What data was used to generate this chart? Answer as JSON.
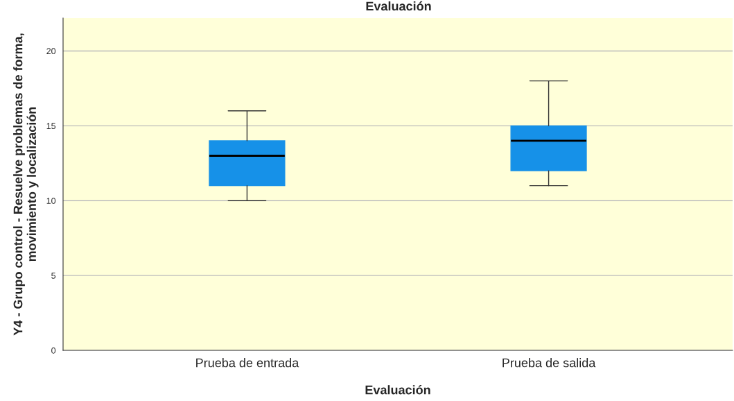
{
  "chart_data": {
    "type": "box",
    "title": "Evaluación",
    "xlabel": "Evaluación",
    "ylabel": "Y4 - Grupo control - Resuelve problemas de forma, movimiento y localización",
    "categories": [
      "Prueba de entrada",
      "Prueba de salida"
    ],
    "boxes": [
      {
        "low": 10,
        "q1": 11,
        "median": 13,
        "q3": 14,
        "high": 16
      },
      {
        "low": 11,
        "q1": 12,
        "median": 14,
        "q3": 15,
        "high": 18
      }
    ],
    "color": "#1691e8",
    "ylim": [
      0,
      22.2
    ],
    "yticks": [
      0,
      5,
      10,
      15,
      20
    ],
    "grid": "y"
  }
}
